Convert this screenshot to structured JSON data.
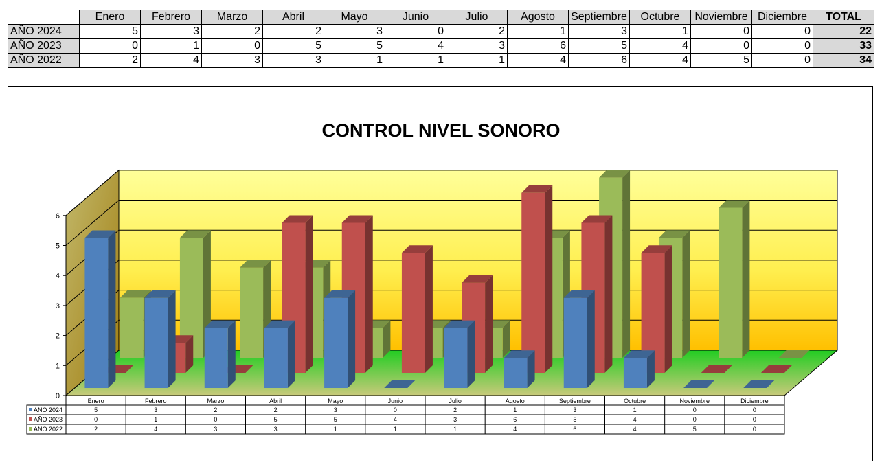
{
  "table": {
    "months": [
      "Enero",
      "Febrero",
      "Marzo",
      "Abril",
      "Mayo",
      "Junio",
      "Julio",
      "Agosto",
      "Septiembre",
      "Octubre",
      "Noviembre",
      "Diciembre"
    ],
    "total_label": "TOTAL",
    "rows": [
      {
        "label": "AÑO 2024",
        "values": [
          5,
          3,
          2,
          2,
          3,
          0,
          2,
          1,
          3,
          1,
          0,
          0
        ],
        "total": 22
      },
      {
        "label": "AÑO 2023",
        "values": [
          0,
          1,
          0,
          5,
          5,
          4,
          3,
          6,
          5,
          4,
          0,
          0
        ],
        "total": 33
      },
      {
        "label": "AÑO 2022",
        "values": [
          2,
          4,
          3,
          3,
          1,
          1,
          1,
          4,
          6,
          4,
          5,
          0
        ],
        "total": 34
      }
    ]
  },
  "chart_data": {
    "type": "bar",
    "title": "CONTROL NIVEL SONORO",
    "categories": [
      "Enero",
      "Febrero",
      "Marzo",
      "Abril",
      "Mayo",
      "Junio",
      "Julio",
      "Agosto",
      "Septiembre",
      "Octubre",
      "Noviembre",
      "Diciembre"
    ],
    "series": [
      {
        "name": "AÑO 2024",
        "values": [
          5,
          3,
          2,
          2,
          3,
          0,
          2,
          1,
          3,
          1,
          0,
          0
        ],
        "color": "#4f81bd"
      },
      {
        "name": "AÑO 2023",
        "values": [
          0,
          1,
          0,
          5,
          5,
          4,
          3,
          6,
          5,
          4,
          0,
          0
        ],
        "color": "#c0504d"
      },
      {
        "name": "AÑO 2022",
        "values": [
          2,
          4,
          3,
          3,
          1,
          1,
          1,
          4,
          6,
          4,
          5,
          0
        ],
        "color": "#9bbb59"
      }
    ],
    "ylim": [
      0,
      6
    ],
    "yticks": [
      0,
      1,
      2,
      3,
      4,
      5,
      6
    ],
    "grid": true,
    "legend": "data-table-below"
  }
}
